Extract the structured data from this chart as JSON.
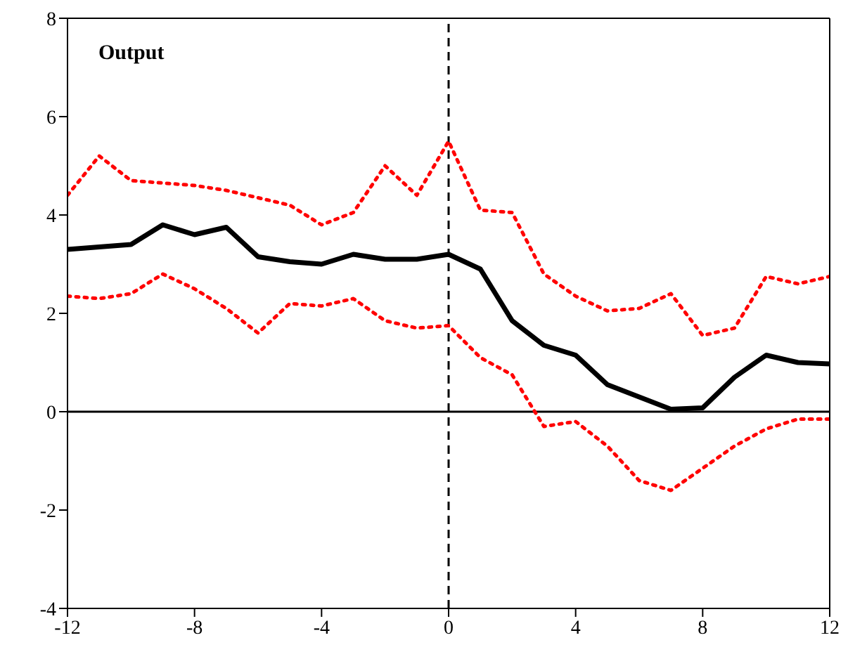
{
  "chart_data": {
    "type": "line",
    "title": "Output",
    "x": [
      -12,
      -11,
      -10,
      -9,
      -8,
      -7,
      -6,
      -5,
      -4,
      -3,
      -2,
      -1,
      0,
      1,
      2,
      3,
      4,
      5,
      6,
      7,
      8,
      9,
      10,
      11,
      12
    ],
    "series": [
      {
        "color": "#ff0000",
        "line_style": "dotted",
        "values": [
          4.4,
          5.2,
          4.7,
          4.65,
          4.6,
          4.5,
          4.35,
          4.2,
          3.8,
          4.05,
          5.0,
          4.4,
          5.5,
          4.1,
          4.05,
          2.8,
          2.35,
          2.05,
          2.1,
          2.4,
          1.55,
          1.7,
          2.75,
          2.6,
          2.75
        ]
      },
      {
        "color": "#000000",
        "line_style": "solid",
        "values": [
          3.3,
          3.35,
          3.4,
          3.8,
          3.6,
          3.75,
          3.15,
          3.05,
          3.0,
          3.2,
          3.1,
          3.1,
          3.2,
          2.9,
          1.85,
          1.35,
          1.15,
          0.55,
          0.3,
          0.05,
          0.08,
          0.7,
          1.15,
          1.0,
          0.97
        ]
      },
      {
        "color": "#ff0000",
        "line_style": "dotted",
        "values": [
          2.35,
          2.3,
          2.4,
          2.8,
          2.5,
          2.1,
          1.6,
          2.2,
          2.15,
          2.3,
          1.85,
          1.7,
          1.75,
          1.1,
          0.75,
          -0.3,
          -0.2,
          -0.7,
          -1.4,
          -1.6,
          -1.15,
          -0.7,
          -0.35,
          -0.15,
          -0.15
        ]
      }
    ],
    "xlim": [
      -12,
      12
    ],
    "xticks": [
      -12,
      -8,
      -4,
      0,
      4,
      8,
      12
    ],
    "ylim": [
      -4,
      8
    ],
    "yticks": [
      -4,
      -2,
      0,
      2,
      4,
      6,
      8
    ],
    "ref_lines": [
      {
        "axis": "y",
        "value": 0,
        "color": "#000000",
        "line_style": "solid"
      },
      {
        "axis": "x",
        "value": 0,
        "color": "#000000",
        "line_style": "dashed"
      }
    ],
    "grid": false,
    "legend": false,
    "marker": "none"
  }
}
